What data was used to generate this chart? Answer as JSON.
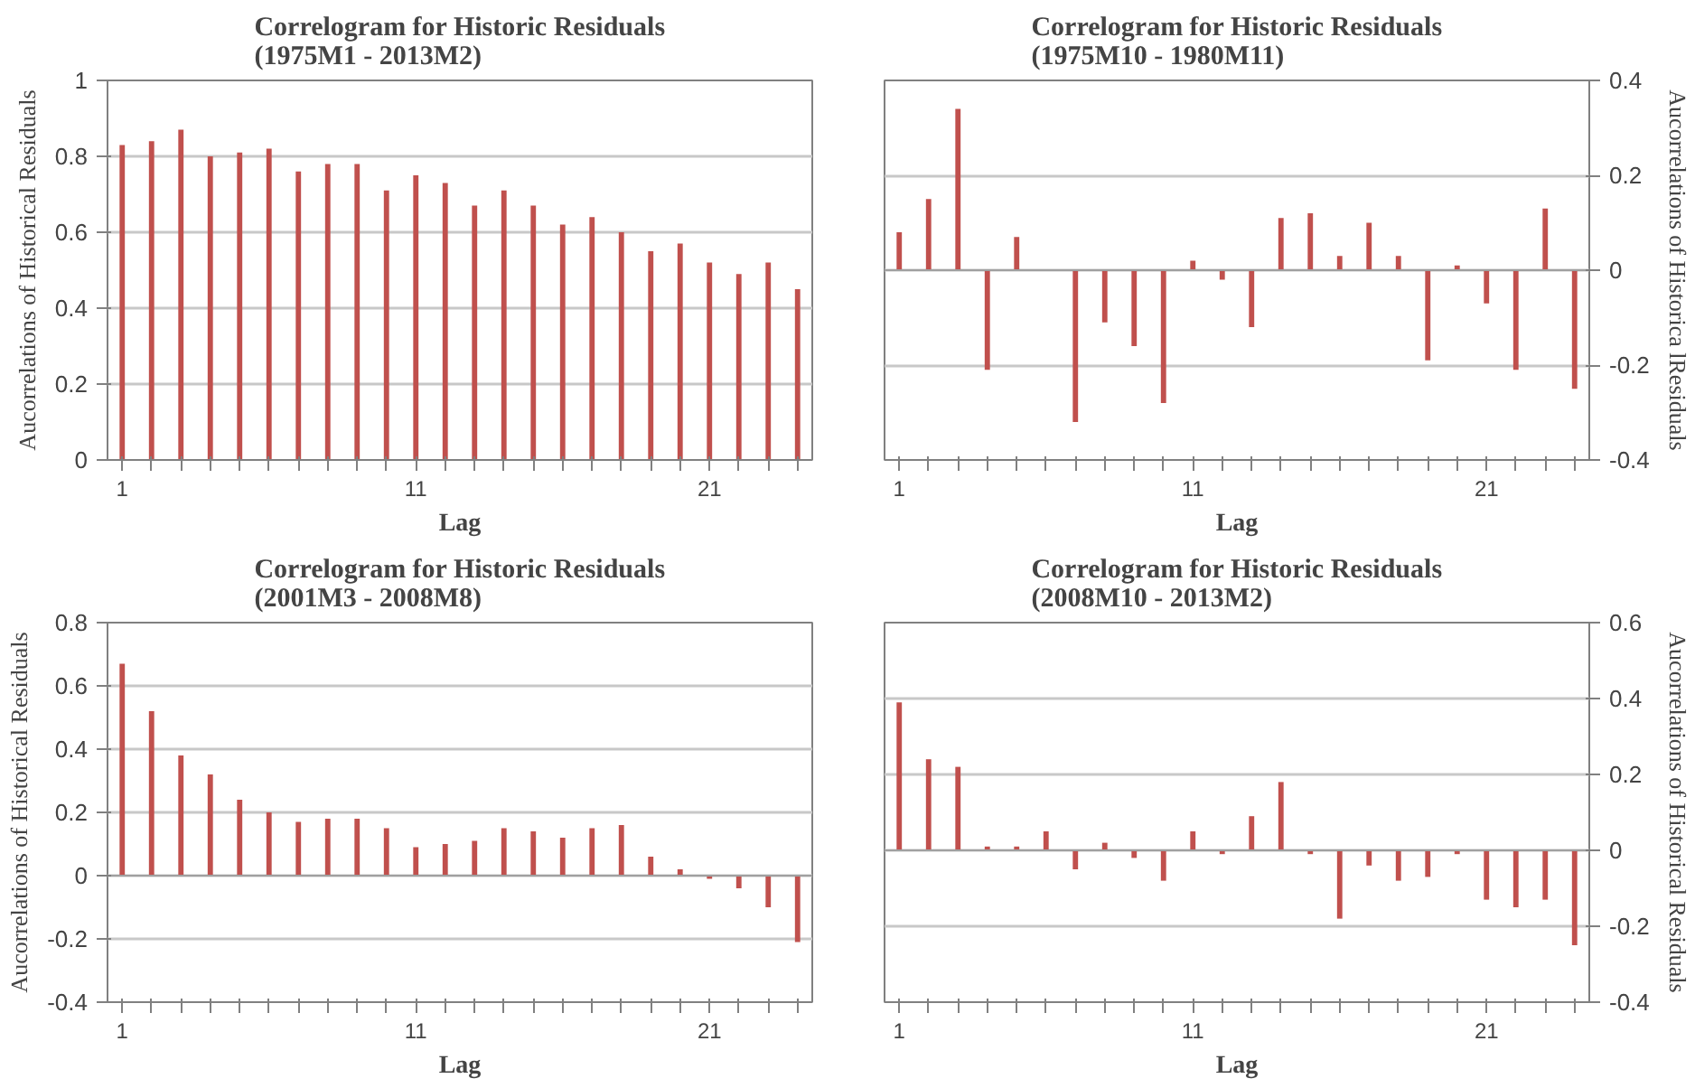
{
  "chart_data": [
    {
      "type": "bar",
      "title": "Correlogram for Historic Residuals\n(1975M1 - 2013M2)",
      "xlabel": "Lag",
      "ylabel": "Aucorrelations of Historical Residuals",
      "categories": [
        "1",
        null,
        null,
        null,
        null,
        null,
        null,
        null,
        null,
        null,
        "11",
        null,
        null,
        null,
        null,
        null,
        null,
        null,
        null,
        null,
        "21",
        null,
        null,
        null
      ],
      "series": [
        {
          "color": "#c0504d",
          "values": [
            0.83,
            0.84,
            0.87,
            0.8,
            0.81,
            0.82,
            0.76,
            0.78,
            0.78,
            0.71,
            0.75,
            0.73,
            0.67,
            0.71,
            0.67,
            0.62,
            0.64,
            0.6,
            0.55,
            0.57,
            0.52,
            0.49,
            0.52,
            0.45
          ]
        }
      ],
      "ylim": [
        0,
        1
      ],
      "yticks": [
        0,
        0.2,
        0.4,
        0.6,
        0.8,
        1
      ],
      "grid": "y"
    },
    {
      "type": "bar",
      "title": "Correlogram for Historic Residuals\n(1975M10 - 1980M11)",
      "xlabel": "Lag",
      "y2label": "Aucorrelations of Historica lResiduals",
      "categories": [
        "1",
        null,
        null,
        null,
        null,
        null,
        null,
        null,
        null,
        null,
        "11",
        null,
        null,
        null,
        null,
        null,
        null,
        null,
        null,
        null,
        "21",
        null,
        null,
        null
      ],
      "series": [
        {
          "color": "#c0504d",
          "axis": "y2",
          "values": [
            0.08,
            0.15,
            0.34,
            -0.21,
            0.07,
            0,
            -0.32,
            -0.11,
            -0.16,
            -0.28,
            0.02,
            -0.02,
            -0.12,
            0.11,
            0.12,
            0.03,
            0.1,
            0.03,
            -0.19,
            0.01,
            -0.07,
            -0.21,
            0.13,
            -0.25
          ]
        }
      ],
      "y2lim": [
        -0.4,
        0.4
      ],
      "y2ticks": [
        -0.4,
        -0.2,
        0,
        0.2,
        0.4
      ],
      "grid": "y"
    },
    {
      "type": "bar",
      "title": "Correlogram for Historic Residuals\n(2001M3 - 2008M8)",
      "xlabel": "Lag",
      "ylabel": "Aucorrelations of Historical Residuals",
      "categories": [
        "1",
        null,
        null,
        null,
        null,
        null,
        null,
        null,
        null,
        null,
        "11",
        null,
        null,
        null,
        null,
        null,
        null,
        null,
        null,
        null,
        "21",
        null,
        null,
        null
      ],
      "series": [
        {
          "color": "#c0504d",
          "values": [
            0.67,
            0.52,
            0.38,
            0.32,
            0.24,
            0.2,
            0.17,
            0.18,
            0.18,
            0.15,
            0.09,
            0.1,
            0.11,
            0.15,
            0.14,
            0.12,
            0.15,
            0.16,
            0.06,
            0.02,
            -0.01,
            -0.04,
            -0.1,
            -0.21
          ]
        }
      ],
      "ylim": [
        -0.4,
        0.8
      ],
      "yticks": [
        -0.4,
        -0.2,
        0,
        0.2,
        0.4,
        0.6,
        0.8
      ],
      "grid": "y"
    },
    {
      "type": "bar",
      "title": "Correlogram for Historic Residuals\n(2008M10 - 2013M2)",
      "xlabel": "Lag",
      "y2label": "Aucorrelations of Historical Residuals",
      "categories": [
        "1",
        null,
        null,
        null,
        null,
        null,
        null,
        null,
        null,
        null,
        "11",
        null,
        null,
        null,
        null,
        null,
        null,
        null,
        null,
        null,
        "21",
        null,
        null,
        null
      ],
      "series": [
        {
          "color": "#c0504d",
          "axis": "y2",
          "values": [
            0.39,
            0.24,
            0.22,
            0.01,
            0.01,
            0.05,
            -0.05,
            0.02,
            -0.02,
            -0.08,
            0.05,
            -0.01,
            0.09,
            0.18,
            -0.01,
            -0.18,
            -0.04,
            -0.08,
            -0.07,
            -0.01,
            -0.13,
            -0.15,
            -0.13,
            -0.25
          ]
        }
      ],
      "y2lim": [
        -0.4,
        0.6
      ],
      "y2ticks": [
        -0.4,
        -0.2,
        0,
        0.2,
        0.4,
        0.6
      ],
      "grid": "y"
    }
  ]
}
